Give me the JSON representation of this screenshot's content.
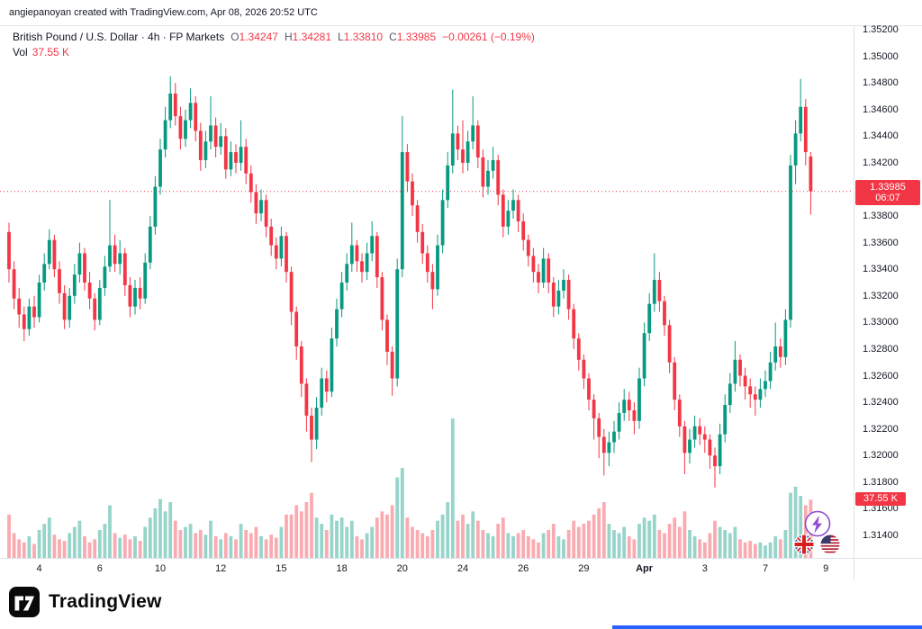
{
  "attribution": "angiepanoyan created with TradingView.com, Apr 08, 2026 20:52 UTC",
  "legend": {
    "symbol_title": "British Pound / U.S. Dollar · 4h · FP Markets",
    "ohlc": {
      "open_label": "O",
      "open": "1.34247",
      "high_label": "H",
      "high": "1.34281",
      "low_label": "L",
      "low": "1.33810",
      "close_label": "C",
      "close": "1.33985",
      "change": "−0.00261 (−0.19%)"
    },
    "volume_label": "Vol",
    "volume_value": "37.55 K"
  },
  "last_price_badge": {
    "price": "1.33985",
    "countdown": "06:07"
  },
  "volume_badge": {
    "text": "37.55 K"
  },
  "price_scale": {
    "labels": [
      "1.35200",
      "1.35000",
      "1.34800",
      "1.34600",
      "1.34400",
      "1.34200",
      "1.34000",
      "1.33800",
      "1.33600",
      "1.33400",
      "1.33200",
      "1.33000",
      "1.32800",
      "1.32600",
      "1.32400",
      "1.32200",
      "1.32000",
      "1.31800",
      "1.31600",
      "1.31400"
    ]
  },
  "x_axis": {
    "labels": [
      {
        "text": "4",
        "candle_index": 6
      },
      {
        "text": "6",
        "candle_index": 18
      },
      {
        "text": "10",
        "candle_index": 30
      },
      {
        "text": "12",
        "candle_index": 42
      },
      {
        "text": "15",
        "candle_index": 54
      },
      {
        "text": "18",
        "candle_index": 66
      },
      {
        "text": "20",
        "candle_index": 78
      },
      {
        "text": "24",
        "candle_index": 90
      },
      {
        "text": "26",
        "candle_index": 102
      },
      {
        "text": "29",
        "candle_index": 114
      },
      {
        "text": "Apr",
        "candle_index": 126,
        "bold": true
      },
      {
        "text": "3",
        "candle_index": 138
      },
      {
        "text": "7",
        "candle_index": 150
      },
      {
        "text": "9",
        "candle_index": 162
      }
    ]
  },
  "footer": {
    "brand": "TradingView"
  },
  "icons": {
    "reactions": [
      "lightning-reaction",
      "uk-flag",
      "us-flag"
    ]
  },
  "colors": {
    "up": "#089981",
    "down": "#f23645",
    "vol_up": "rgba(8,153,129,0.42)",
    "vol_down": "rgba(242,54,69,0.42)",
    "axis_line": "#e0e3eb",
    "accent_blue": "#2962ff",
    "badge_red": "#f23645"
  },
  "chart_data": {
    "type": "candlestick",
    "title": "British Pound / U.S. Dollar, 4h, FP Markets",
    "symbol": "GBP/USD",
    "interval": "4h",
    "exchange": "FP Markets",
    "grid": false,
    "ylim": [
      1.314,
      1.352
    ],
    "y_tick_step": 0.002,
    "last_price": 1.33985,
    "last_volume_k": 37.55,
    "ohlc_display": {
      "open": 1.34247,
      "high": 1.34281,
      "low": 1.3381,
      "close": 1.33985,
      "change": -0.00261,
      "change_pct": -0.19
    },
    "x_tick_labels": [
      "4",
      "6",
      "10",
      "12",
      "15",
      "18",
      "20",
      "24",
      "26",
      "29",
      "Apr",
      "3",
      "7",
      "9"
    ],
    "columns": [
      "open",
      "high",
      "low",
      "close",
      "volume_k"
    ],
    "candles": [
      [
        1.3368,
        1.3375,
        1.333,
        1.334,
        28
      ],
      [
        1.334,
        1.3346,
        1.331,
        1.3318,
        16
      ],
      [
        1.3318,
        1.3326,
        1.3296,
        1.3306,
        12
      ],
      [
        1.3306,
        1.3312,
        1.3286,
        1.3295,
        10
      ],
      [
        1.3295,
        1.3318,
        1.329,
        1.3312,
        14
      ],
      [
        1.3312,
        1.332,
        1.3296,
        1.3304,
        9
      ],
      [
        1.3304,
        1.3336,
        1.33,
        1.333,
        18
      ],
      [
        1.333,
        1.3352,
        1.3324,
        1.3344,
        22
      ],
      [
        1.3344,
        1.337,
        1.334,
        1.3362,
        26
      ],
      [
        1.3362,
        1.3366,
        1.3334,
        1.334,
        15
      ],
      [
        1.334,
        1.3346,
        1.3314,
        1.3322,
        12
      ],
      [
        1.3322,
        1.3328,
        1.3295,
        1.3302,
        11
      ],
      [
        1.3302,
        1.3326,
        1.3296,
        1.332,
        16
      ],
      [
        1.332,
        1.3344,
        1.3314,
        1.3336,
        20
      ],
      [
        1.3336,
        1.336,
        1.333,
        1.3352,
        24
      ],
      [
        1.3352,
        1.3356,
        1.3324,
        1.333,
        14
      ],
      [
        1.333,
        1.3338,
        1.331,
        1.3318,
        10
      ],
      [
        1.3318,
        1.3322,
        1.3294,
        1.3302,
        12
      ],
      [
        1.3302,
        1.3332,
        1.3298,
        1.3326,
        18
      ],
      [
        1.3326,
        1.335,
        1.332,
        1.3342,
        22
      ],
      [
        1.3342,
        1.3392,
        1.3338,
        1.3358,
        34
      ],
      [
        1.3358,
        1.3366,
        1.3338,
        1.3344,
        16
      ],
      [
        1.3344,
        1.3362,
        1.3336,
        1.3352,
        13
      ],
      [
        1.3352,
        1.3356,
        1.332,
        1.3328,
        15
      ],
      [
        1.3328,
        1.3334,
        1.3304,
        1.3312,
        12
      ],
      [
        1.3312,
        1.3332,
        1.3306,
        1.3326,
        14
      ],
      [
        1.3326,
        1.3334,
        1.331,
        1.3318,
        11
      ],
      [
        1.3318,
        1.3352,
        1.3314,
        1.3345,
        20
      ],
      [
        1.3345,
        1.338,
        1.334,
        1.3372,
        26
      ],
      [
        1.3372,
        1.341,
        1.3366,
        1.3402,
        32
      ],
      [
        1.3402,
        1.3438,
        1.3396,
        1.343,
        38
      ],
      [
        1.343,
        1.3462,
        1.3424,
        1.3452,
        30
      ],
      [
        1.3452,
        1.3485,
        1.3446,
        1.3472,
        36
      ],
      [
        1.3472,
        1.348,
        1.3448,
        1.3455,
        24
      ],
      [
        1.3455,
        1.3462,
        1.343,
        1.3438,
        18
      ],
      [
        1.3438,
        1.346,
        1.3432,
        1.3452,
        20
      ],
      [
        1.3452,
        1.3476,
        1.3446,
        1.3465,
        22
      ],
      [
        1.3465,
        1.347,
        1.3436,
        1.3444,
        16
      ],
      [
        1.3444,
        1.345,
        1.3414,
        1.3422,
        18
      ],
      [
        1.3422,
        1.3444,
        1.3416,
        1.3436,
        15
      ],
      [
        1.3436,
        1.347,
        1.343,
        1.3448,
        24
      ],
      [
        1.3448,
        1.3454,
        1.3424,
        1.3432,
        14
      ],
      [
        1.3432,
        1.345,
        1.3426,
        1.344,
        12
      ],
      [
        1.344,
        1.3446,
        1.3408,
        1.3415,
        16
      ],
      [
        1.3415,
        1.3436,
        1.341,
        1.3428,
        14
      ],
      [
        1.3428,
        1.3434,
        1.3412,
        1.342,
        12
      ],
      [
        1.342,
        1.3452,
        1.3414,
        1.3432,
        22
      ],
      [
        1.3432,
        1.3438,
        1.3404,
        1.3412,
        18
      ],
      [
        1.3412,
        1.3418,
        1.339,
        1.3398,
        16
      ],
      [
        1.3398,
        1.3404,
        1.3374,
        1.3382,
        20
      ],
      [
        1.3382,
        1.34,
        1.3376,
        1.3392,
        14
      ],
      [
        1.3392,
        1.3396,
        1.3364,
        1.3372,
        12
      ],
      [
        1.3372,
        1.3378,
        1.335,
        1.3358,
        15
      ],
      [
        1.3358,
        1.3364,
        1.334,
        1.3348,
        13
      ],
      [
        1.3348,
        1.3372,
        1.3342,
        1.3365,
        20
      ],
      [
        1.3365,
        1.3368,
        1.333,
        1.3338,
        28
      ],
      [
        1.3338,
        1.3342,
        1.3298,
        1.3308,
        28
      ],
      [
        1.3308,
        1.3312,
        1.3272,
        1.3282,
        34
      ],
      [
        1.3282,
        1.3286,
        1.3244,
        1.3254,
        30
      ],
      [
        1.3254,
        1.3258,
        1.3218,
        1.323,
        36
      ],
      [
        1.323,
        1.3236,
        1.3195,
        1.3212,
        42
      ],
      [
        1.3212,
        1.3244,
        1.3205,
        1.3236,
        26
      ],
      [
        1.3236,
        1.3266,
        1.323,
        1.3258,
        22
      ],
      [
        1.3258,
        1.3264,
        1.324,
        1.3248,
        18
      ],
      [
        1.3248,
        1.3296,
        1.3244,
        1.3288,
        28
      ],
      [
        1.3288,
        1.3318,
        1.3282,
        1.331,
        24
      ],
      [
        1.331,
        1.3338,
        1.3304,
        1.333,
        26
      ],
      [
        1.333,
        1.3352,
        1.3324,
        1.3344,
        20
      ],
      [
        1.3344,
        1.3375,
        1.3338,
        1.3358,
        24
      ],
      [
        1.3358,
        1.3362,
        1.3338,
        1.3346,
        14
      ],
      [
        1.3346,
        1.3352,
        1.333,
        1.3338,
        12
      ],
      [
        1.3338,
        1.336,
        1.3332,
        1.3352,
        16
      ],
      [
        1.3352,
        1.3376,
        1.3346,
        1.3365,
        20
      ],
      [
        1.3365,
        1.3368,
        1.3326,
        1.3334,
        26
      ],
      [
        1.3334,
        1.3338,
        1.3294,
        1.3302,
        30
      ],
      [
        1.3302,
        1.3306,
        1.3268,
        1.3278,
        28
      ],
      [
        1.3278,
        1.3282,
        1.3245,
        1.3258,
        34
      ],
      [
        1.3258,
        1.3348,
        1.3252,
        1.334,
        52
      ],
      [
        1.334,
        1.3455,
        1.3334,
        1.3428,
        58
      ],
      [
        1.3428,
        1.3434,
        1.3398,
        1.3406,
        26
      ],
      [
        1.3406,
        1.3412,
        1.338,
        1.3388,
        20
      ],
      [
        1.3388,
        1.3392,
        1.336,
        1.3368,
        18
      ],
      [
        1.3368,
        1.3374,
        1.3344,
        1.3352,
        16
      ],
      [
        1.3352,
        1.3358,
        1.333,
        1.3338,
        14
      ],
      [
        1.3338,
        1.3344,
        1.331,
        1.3325,
        18
      ],
      [
        1.3325,
        1.3366,
        1.332,
        1.3358,
        24
      ],
      [
        1.3358,
        1.34,
        1.3352,
        1.3392,
        28
      ],
      [
        1.3392,
        1.3428,
        1.3386,
        1.3418,
        36
      ],
      [
        1.3418,
        1.3475,
        1.3412,
        1.3442,
        90
      ],
      [
        1.3442,
        1.3448,
        1.3422,
        1.343,
        24
      ],
      [
        1.343,
        1.3452,
        1.3412,
        1.342,
        28
      ],
      [
        1.342,
        1.3444,
        1.3414,
        1.3436,
        22
      ],
      [
        1.3436,
        1.347,
        1.343,
        1.3448,
        30
      ],
      [
        1.3448,
        1.3452,
        1.3416,
        1.3424,
        24
      ],
      [
        1.3424,
        1.343,
        1.3394,
        1.3402,
        18
      ],
      [
        1.3402,
        1.3422,
        1.3396,
        1.3414,
        16
      ],
      [
        1.3414,
        1.3432,
        1.3408,
        1.3422,
        14
      ],
      [
        1.3422,
        1.3426,
        1.3388,
        1.3396,
        22
      ],
      [
        1.3396,
        1.34,
        1.3364,
        1.3372,
        26
      ],
      [
        1.3372,
        1.3392,
        1.3366,
        1.3384,
        16
      ],
      [
        1.3384,
        1.34,
        1.3378,
        1.3392,
        14
      ],
      [
        1.3392,
        1.3396,
        1.3368,
        1.3376,
        16
      ],
      [
        1.3376,
        1.3382,
        1.3354,
        1.3362,
        18
      ],
      [
        1.3362,
        1.3366,
        1.3342,
        1.335,
        14
      ],
      [
        1.335,
        1.3356,
        1.333,
        1.3338,
        12
      ],
      [
        1.3338,
        1.3344,
        1.3322,
        1.333,
        10
      ],
      [
        1.333,
        1.3356,
        1.3326,
        1.3348,
        16
      ],
      [
        1.3348,
        1.3352,
        1.3322,
        1.333,
        18
      ],
      [
        1.333,
        1.3334,
        1.3304,
        1.3312,
        22
      ],
      [
        1.3312,
        1.3332,
        1.3306,
        1.3324,
        14
      ],
      [
        1.3324,
        1.334,
        1.3318,
        1.3332,
        12
      ],
      [
        1.3332,
        1.3336,
        1.3302,
        1.331,
        18
      ],
      [
        1.331,
        1.3314,
        1.328,
        1.3288,
        24
      ],
      [
        1.3288,
        1.3292,
        1.3264,
        1.3272,
        20
      ],
      [
        1.3272,
        1.3276,
        1.325,
        1.3258,
        22
      ],
      [
        1.3258,
        1.3262,
        1.3234,
        1.3242,
        24
      ],
      [
        1.3242,
        1.3246,
        1.3212,
        1.3228,
        28
      ],
      [
        1.3228,
        1.3232,
        1.3198,
        1.3214,
        32
      ],
      [
        1.3214,
        1.322,
        1.3185,
        1.3202,
        36
      ],
      [
        1.3202,
        1.3218,
        1.3192,
        1.321,
        22
      ],
      [
        1.321,
        1.3226,
        1.3202,
        1.3218,
        18
      ],
      [
        1.3218,
        1.324,
        1.3212,
        1.3232,
        16
      ],
      [
        1.3232,
        1.325,
        1.3226,
        1.3242,
        20
      ],
      [
        1.3242,
        1.3248,
        1.3226,
        1.3234,
        14
      ],
      [
        1.3234,
        1.324,
        1.3216,
        1.3226,
        12
      ],
      [
        1.3226,
        1.3266,
        1.322,
        1.3258,
        22
      ],
      [
        1.3258,
        1.33,
        1.3252,
        1.3292,
        26
      ],
      [
        1.3292,
        1.3322,
        1.3286,
        1.3314,
        24
      ],
      [
        1.3314,
        1.3352,
        1.3308,
        1.3332,
        28
      ],
      [
        1.3332,
        1.3338,
        1.3308,
        1.3316,
        18
      ],
      [
        1.3316,
        1.332,
        1.329,
        1.3298,
        16
      ],
      [
        1.3298,
        1.3302,
        1.3262,
        1.327,
        22
      ],
      [
        1.327,
        1.3274,
        1.3234,
        1.3242,
        26
      ],
      [
        1.3242,
        1.3246,
        1.3214,
        1.3222,
        20
      ],
      [
        1.3222,
        1.3226,
        1.3186,
        1.3202,
        30
      ],
      [
        1.3202,
        1.322,
        1.3194,
        1.3212,
        18
      ],
      [
        1.3212,
        1.323,
        1.3206,
        1.3222,
        14
      ],
      [
        1.3222,
        1.3228,
        1.3208,
        1.3216,
        12
      ],
      [
        1.3216,
        1.3222,
        1.3202,
        1.3212,
        10
      ],
      [
        1.3212,
        1.3216,
        1.319,
        1.32,
        16
      ],
      [
        1.32,
        1.3206,
        1.3176,
        1.3192,
        24
      ],
      [
        1.3192,
        1.3224,
        1.3186,
        1.3216,
        20
      ],
      [
        1.3216,
        1.3246,
        1.321,
        1.3238,
        18
      ],
      [
        1.3238,
        1.3262,
        1.3232,
        1.3254,
        16
      ],
      [
        1.3254,
        1.3286,
        1.3248,
        1.3272,
        20
      ],
      [
        1.3272,
        1.3276,
        1.3252,
        1.326,
        12
      ],
      [
        1.326,
        1.3266,
        1.3242,
        1.3252,
        10
      ],
      [
        1.3252,
        1.3258,
        1.3236,
        1.3246,
        11
      ],
      [
        1.3246,
        1.3252,
        1.323,
        1.3242,
        9
      ],
      [
        1.3242,
        1.3258,
        1.3236,
        1.325,
        10
      ],
      [
        1.325,
        1.3264,
        1.3244,
        1.3256,
        8
      ],
      [
        1.3256,
        1.3278,
        1.325,
        1.327,
        10
      ],
      [
        1.327,
        1.33,
        1.3264,
        1.3282,
        14
      ],
      [
        1.3282,
        1.3288,
        1.3266,
        1.3274,
        12
      ],
      [
        1.3274,
        1.331,
        1.3268,
        1.3302,
        18
      ],
      [
        1.3302,
        1.3426,
        1.3296,
        1.3418,
        42
      ],
      [
        1.3418,
        1.3452,
        1.3404,
        1.3442,
        46
      ],
      [
        1.3442,
        1.3483,
        1.3436,
        1.3462,
        40
      ],
      [
        1.3462,
        1.3468,
        1.3418,
        1.3428,
        34
      ],
      [
        1.34247,
        1.34281,
        1.3381,
        1.33985,
        37.55
      ]
    ]
  }
}
